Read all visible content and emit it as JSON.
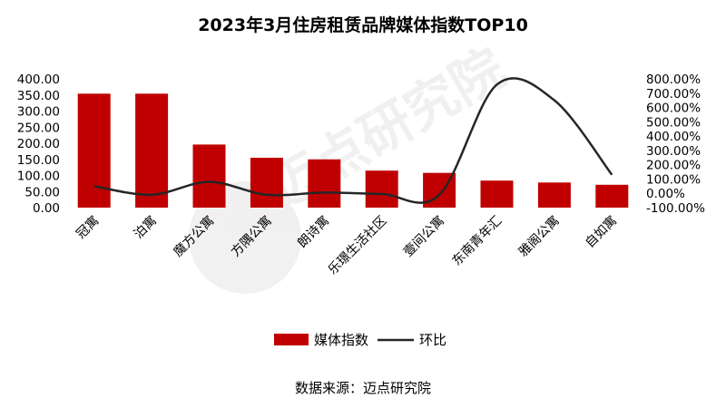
{
  "chart_data": {
    "type": "bar",
    "title": "2023年3月住房租赁品牌媒体指数TOP10",
    "categories": [
      "冠寓",
      "泊寓",
      "魔方公寓",
      "方隅公寓",
      "朗诗寓",
      "乐璟生活社区",
      "壹间公寓",
      "东南青年汇",
      "雅阁公寓",
      "自如寓"
    ],
    "series": [
      {
        "name": "媒体指数",
        "kind": "bar",
        "axis": "left",
        "color": "#c00000",
        "values": [
          354,
          354,
          196,
          155,
          150,
          115,
          108,
          84,
          78,
          71
        ]
      },
      {
        "name": "环比",
        "kind": "line",
        "axis": "right",
        "color": "#262626",
        "values": [
          50,
          -10,
          80,
          -10,
          5,
          -5,
          -10,
          760,
          650,
          130
        ]
      }
    ],
    "y_left": {
      "min": 0,
      "max": 400,
      "step": 50,
      "tick_labels": [
        "0.00",
        "50.00",
        "100.00",
        "150.00",
        "200.00",
        "250.00",
        "300.00",
        "350.00",
        "400.00"
      ]
    },
    "y_right": {
      "min": -100,
      "max": 800,
      "step": 100,
      "tick_labels": [
        "-100.00%",
        "0.00%",
        "100.00%",
        "200.00%",
        "300.00%",
        "400.00%",
        "500.00%",
        "600.00%",
        "700.00%",
        "800.00%"
      ]
    },
    "legend_position": "bottom",
    "grid": false,
    "source": "数据来源：迈点研究院"
  }
}
